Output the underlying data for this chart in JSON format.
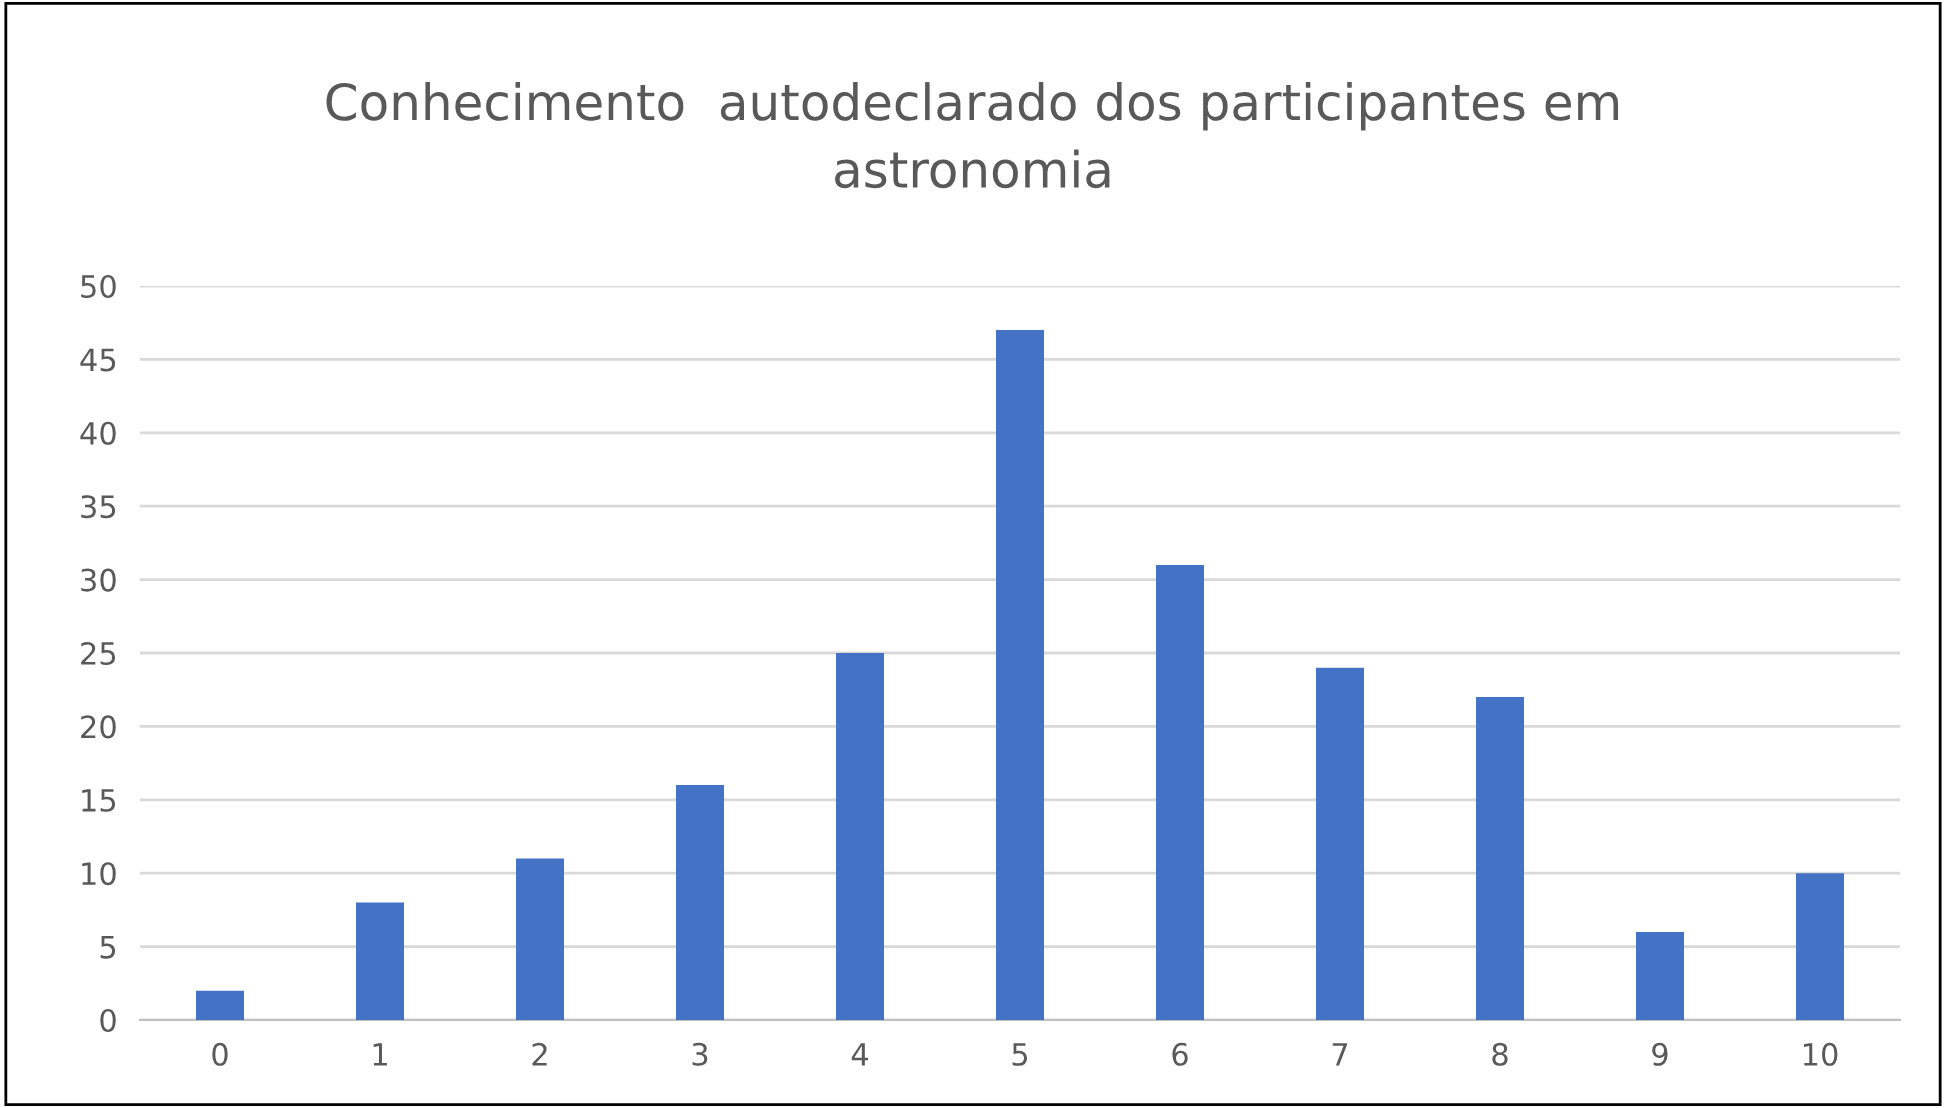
{
  "chart_data": {
    "type": "bar",
    "title": "Conhecimento  autodeclarado dos participantes em\nastronomia",
    "categories": [
      "0",
      "1",
      "2",
      "3",
      "4",
      "5",
      "6",
      "7",
      "8",
      "9",
      "10"
    ],
    "values": [
      2,
      8,
      11,
      16,
      25,
      47,
      31,
      24,
      22,
      6,
      10
    ],
    "color": "#4472c4",
    "ylim": [
      0,
      50
    ],
    "yticks": [
      0,
      5,
      10,
      15,
      20,
      25,
      30,
      35,
      40,
      45,
      50
    ],
    "grid": "y",
    "legend": false
  }
}
